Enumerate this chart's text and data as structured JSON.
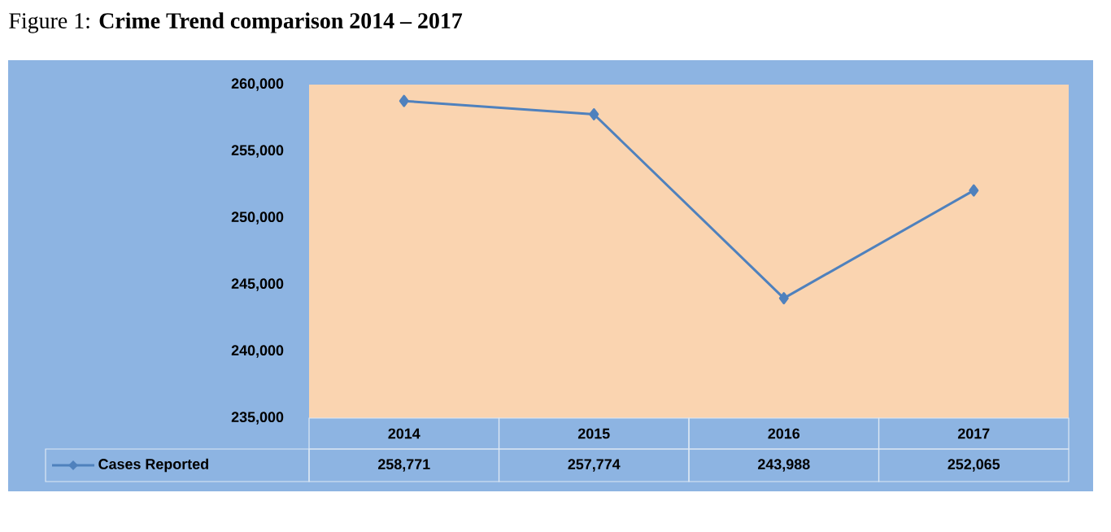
{
  "chart_data": {
    "type": "line",
    "title": "Figure 1: **Crime Trend comparison 2014 – 2017**",
    "categories": [
      "2014",
      "2015",
      "2016",
      "2017"
    ],
    "series": [
      {
        "name": "Cases Reported",
        "color": "#4f81bd",
        "values": [
          258771,
          257774,
          243988,
          252065
        ],
        "value_labels": [
          "258,771",
          "257,774",
          "243,988",
          "252,065"
        ]
      }
    ],
    "ylim": [
      235000,
      260000
    ],
    "yticks": [
      {
        "value": 235000,
        "label": "235,000"
      },
      {
        "value": 240000,
        "label": "240,000"
      },
      {
        "value": 245000,
        "label": "245,000"
      },
      {
        "value": 250000,
        "label": "250,000"
      },
      {
        "value": 255000,
        "label": "255,000"
      },
      {
        "value": 260000,
        "label": "260,000"
      }
    ],
    "marker": "diamond",
    "line_style": "solid",
    "legend": "bottom left"
  }
}
